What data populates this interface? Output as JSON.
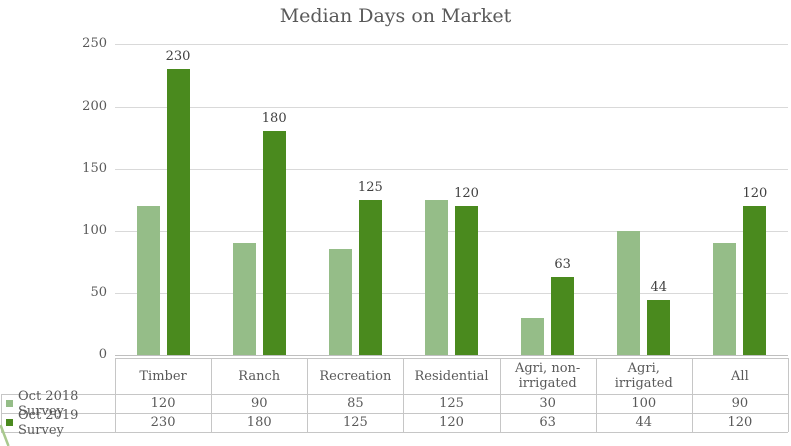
{
  "chart_data": {
    "type": "bar",
    "title": "Median Days on Market",
    "categories": [
      "Timber",
      "Ranch",
      "Recreation",
      "Residential",
      "Agri, non-irrigated",
      "Agri, irrigated",
      "All"
    ],
    "series": [
      {
        "name": "Oct 2018 Survey",
        "color": "#95BD88",
        "values": [
          120,
          90,
          85,
          125,
          30,
          100,
          90
        ],
        "data_labels": false
      },
      {
        "name": "Oct 2019 Survey",
        "color": "#4A8A1E",
        "values": [
          230,
          180,
          125,
          120,
          63,
          44,
          120
        ],
        "data_labels": true
      }
    ],
    "xlabel": "",
    "ylabel": "",
    "ylim": [
      0,
      250
    ],
    "yticks": [
      0,
      50,
      100,
      150,
      200,
      250
    ],
    "grid": true,
    "legend_position": "left-of-data-table",
    "data_table_shown": true
  },
  "colors": {
    "series_2018": "#95BD88",
    "series_2019": "#4A8A1E",
    "gridline": "#D9D9D9",
    "axis_line": "#BFBFBF",
    "table_border": "#C6C6C6",
    "text": "#595959",
    "corner_decoration": "#A9C98E"
  }
}
